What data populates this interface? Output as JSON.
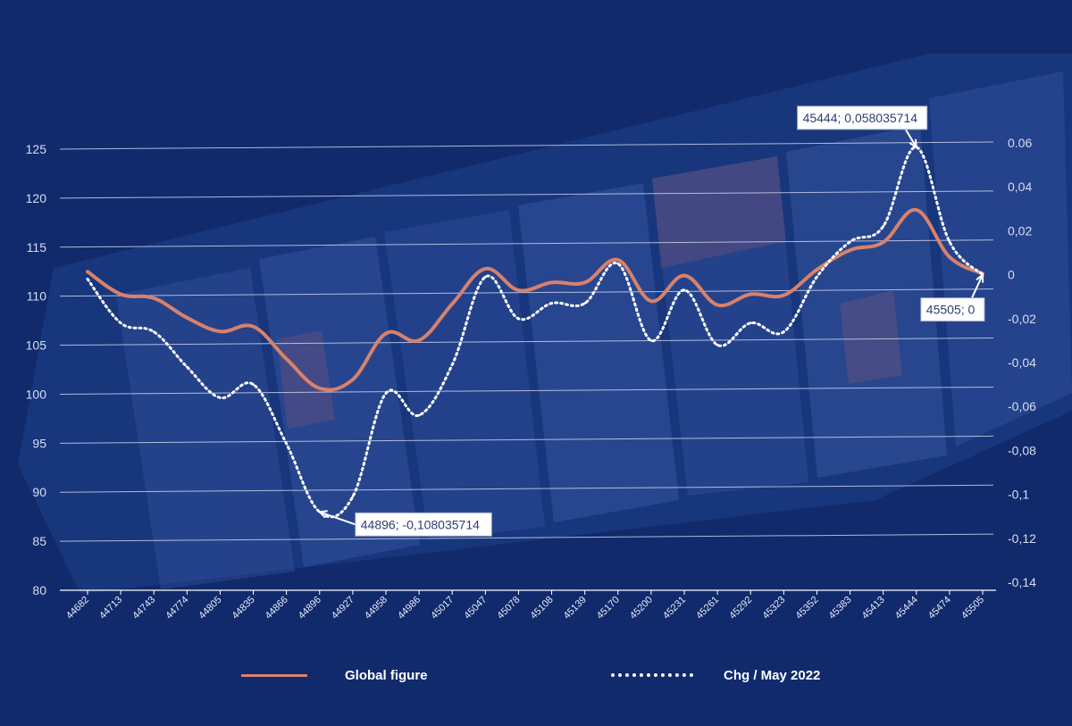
{
  "colors": {
    "global": "#d9816a",
    "chg": "#ffffff",
    "grid": "#c8d1ec",
    "background": "#0f2a6e"
  },
  "chart_data": {
    "type": "line",
    "title": "",
    "xlabel": "",
    "ylabel": "",
    "categories": [
      "44682",
      "44713",
      "44743",
      "44774",
      "44805",
      "44835",
      "44866",
      "44896",
      "44927",
      "44958",
      "44986",
      "45017",
      "45047",
      "45078",
      "45108",
      "45139",
      "45170",
      "45200",
      "45231",
      "45261",
      "45292",
      "45323",
      "45352",
      "45383",
      "45413",
      "45444",
      "45474",
      "45505"
    ],
    "y_left": {
      "lim": [
        80,
        125
      ],
      "ticks": [
        "80",
        "85",
        "90",
        "95",
        "100",
        "105",
        "110",
        "115",
        "120",
        "125"
      ]
    },
    "y_right": {
      "lim": [
        -0.14,
        0.06
      ],
      "ticks": [
        "-0,14",
        "-0,12",
        "-0,1",
        "-0,08",
        "-0,06",
        "-0,04",
        "-0,02",
        "0",
        "0,02",
        "0,04",
        "0.06"
      ]
    },
    "grid": true,
    "legend_position": "bottom",
    "series": [
      {
        "name": "Global figure",
        "axis": "left",
        "style": "solid",
        "values": [
          112.5,
          110.2,
          109.8,
          107.8,
          106.4,
          106.9,
          103.6,
          100.6,
          101.5,
          106.2,
          105.5,
          109.2,
          112.8,
          110.6,
          111.4,
          111.4,
          113.7,
          109.5,
          112.1,
          109.1,
          110.2,
          110.1,
          112.7,
          114.7,
          115.5,
          118.8,
          114.0,
          112.3
        ]
      },
      {
        "name": "Chg / May 2022",
        "axis": "right",
        "style": "dotted",
        "values": [
          -0.002,
          -0.022,
          -0.026,
          -0.042,
          -0.056,
          -0.05,
          -0.077,
          -0.108,
          -0.101,
          -0.054,
          -0.064,
          -0.041,
          -0.001,
          -0.02,
          -0.013,
          -0.013,
          0.005,
          -0.03,
          -0.007,
          -0.032,
          -0.022,
          -0.026,
          -0.001,
          0.015,
          0.022,
          0.058,
          0.015,
          0.0
        ]
      }
    ],
    "annotations": [
      {
        "text": "45444; 0,058035714",
        "series": 1,
        "index": 25,
        "box_side": "above-left"
      },
      {
        "text": "44896; -0,108035714",
        "series": 1,
        "index": 7,
        "box_side": "below-right"
      },
      {
        "text": "45505; 0",
        "series": 1,
        "index": 27,
        "box_side": "below-left"
      }
    ]
  }
}
